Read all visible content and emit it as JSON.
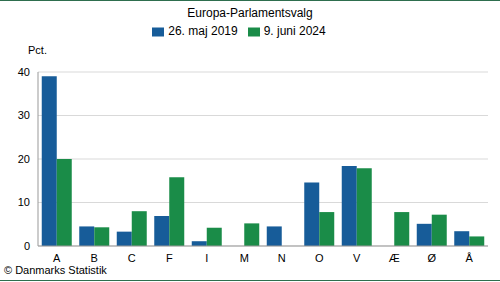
{
  "chart_data": {
    "type": "bar",
    "title": "Europa-Parlamentsvalg",
    "y_label": "Pct.",
    "annotations": [
      "© Danmarks Statistik"
    ],
    "categories": [
      "A",
      "B",
      "C",
      "F",
      "I",
      "M",
      "N",
      "O",
      "V",
      "Æ",
      "Ø",
      "Å"
    ],
    "series": [
      {
        "name": "26. maj 2019",
        "color": "#175c99",
        "values": [
          39,
          4.5,
          3.3,
          6.9,
          1.1,
          null,
          4.5,
          14.6,
          18.4,
          null,
          5.1,
          3.4
        ]
      },
      {
        "name": "9. juni 2024",
        "color": "#1a8c48",
        "values": [
          20,
          4.3,
          8,
          15.8,
          4.2,
          5.2,
          null,
          7.8,
          17.9,
          7.8,
          7.2,
          2.2
        ]
      }
    ],
    "ylim": [
      0,
      40
    ],
    "yticks": [
      0,
      10,
      20,
      30,
      40
    ],
    "grid": true,
    "legend": "top"
  }
}
